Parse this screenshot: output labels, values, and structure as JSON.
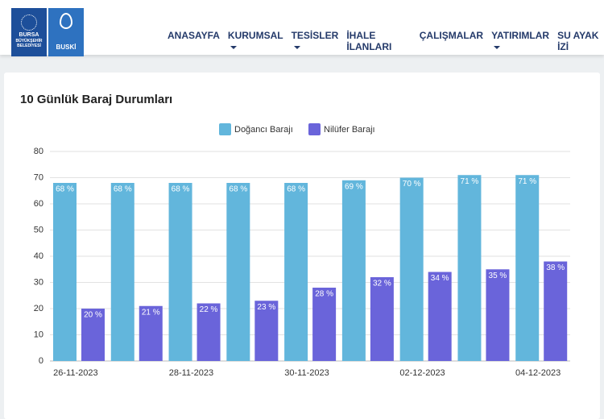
{
  "header": {
    "logo": {
      "lines": [
        "BURSA",
        "BÜYÜKŞEHİR",
        "BELEDİYESİ"
      ],
      "brand": "BUSKİ"
    },
    "nav": [
      "ANASAYFA",
      "KURUMSAL",
      "TESİSLER",
      "İHALE İLANLARI",
      "ÇALIŞMALAR",
      "YATIRIMLAR",
      "SU AYAK İZİ"
    ]
  },
  "chart_data": {
    "type": "bar",
    "title": "10 Günlük Baraj Durumları",
    "categories": [
      "26-11-2023",
      null,
      "28-11-2023",
      null,
      "30-11-2023",
      null,
      "02-12-2023",
      null,
      "04-12-2023"
    ],
    "series": [
      {
        "name": "Doğancı Barajı",
        "color": "#62b6dc",
        "values": [
          68,
          68,
          68,
          68,
          68,
          69,
          70,
          71,
          71
        ],
        "value_labels": [
          "68 %",
          "68 %",
          "68 %",
          "68 %",
          "68 %",
          "69 %",
          "70 %",
          "71 %",
          "71 %"
        ]
      },
      {
        "name": "Nilüfer Barajı",
        "color": "#6a64da",
        "values": [
          20,
          21,
          22,
          23,
          28,
          32,
          34,
          35,
          38
        ],
        "value_labels": [
          "20 %",
          "21 %",
          "22 %",
          "23 %",
          "28 %",
          "32 %",
          "34 %",
          "35 %",
          "38 %"
        ]
      }
    ],
    "ylim": [
      0,
      80
    ],
    "yticks": [
      0,
      10,
      20,
      30,
      40,
      50,
      60,
      70,
      80
    ],
    "grid": true,
    "legend": "top"
  }
}
